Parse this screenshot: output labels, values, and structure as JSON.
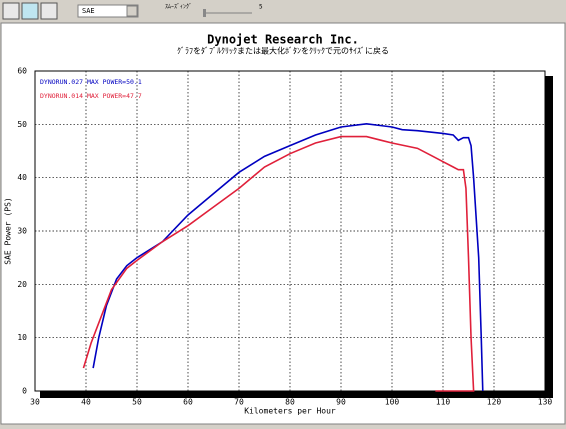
{
  "toolbar": {
    "dropdown": "SAE",
    "smoothing_label": "ｽﾑｰｽﾞｨﾝｸﾞ",
    "smoothing_value": 5
  },
  "chart_data": {
    "type": "line",
    "title": "Dynojet  Research  Inc.",
    "subtitle": "ｸﾞﾗﾌをﾀﾞﾌﾞﾙｸﾘｯｸまたは最大化ﾎﾞﾀﾝをｸﾘｯｸで元のｻｲｽﾞに戻る",
    "x_label": "Kilometers per Hour",
    "y_label": "SAE Power (PS)",
    "xlim": [
      30,
      130
    ],
    "xticks": [
      30,
      40,
      50,
      60,
      70,
      80,
      90,
      100,
      110,
      120,
      130
    ],
    "ylim": [
      0,
      60
    ],
    "yticks": [
      0,
      10,
      20,
      30,
      40,
      50,
      60
    ],
    "grid": true,
    "series": [
      {
        "name": "DYNORUN.027  MAX POWER=50.1",
        "color": "#0000c0",
        "x": [
          41.4,
          42.5,
          44,
          46,
          48,
          50,
          55,
          60,
          65,
          70,
          75,
          80,
          85,
          90,
          95,
          100,
          102,
          105,
          110,
          112,
          113,
          114,
          115,
          115.5,
          116,
          117,
          117.5,
          117.8
        ],
        "values": [
          4.3,
          10,
          16,
          21,
          23.5,
          25,
          28,
          33,
          37,
          41,
          44,
          46,
          48,
          49.5,
          50.1,
          49.5,
          49,
          48.8,
          48.3,
          48,
          47,
          47.5,
          47.5,
          46,
          40,
          25,
          10,
          0
        ]
      },
      {
        "name": "DYNORUN.014  MAX POWER=47.7",
        "color": "#e0203a",
        "x": [
          39.5,
          41,
          43,
          45,
          48,
          50,
          55,
          60,
          65,
          70,
          75,
          80,
          85,
          90,
          95,
          100,
          105,
          108,
          110,
          112,
          113,
          114,
          114.5,
          115,
          115.5,
          116,
          108.5
        ],
        "values": [
          4.3,
          9,
          14,
          19,
          23,
          24.5,
          28,
          31,
          34.5,
          38,
          42,
          44.5,
          46.5,
          47.7,
          47.7,
          46.5,
          45.5,
          44,
          43,
          42,
          41.5,
          41.5,
          38,
          25,
          10,
          0,
          0
        ]
      }
    ]
  }
}
